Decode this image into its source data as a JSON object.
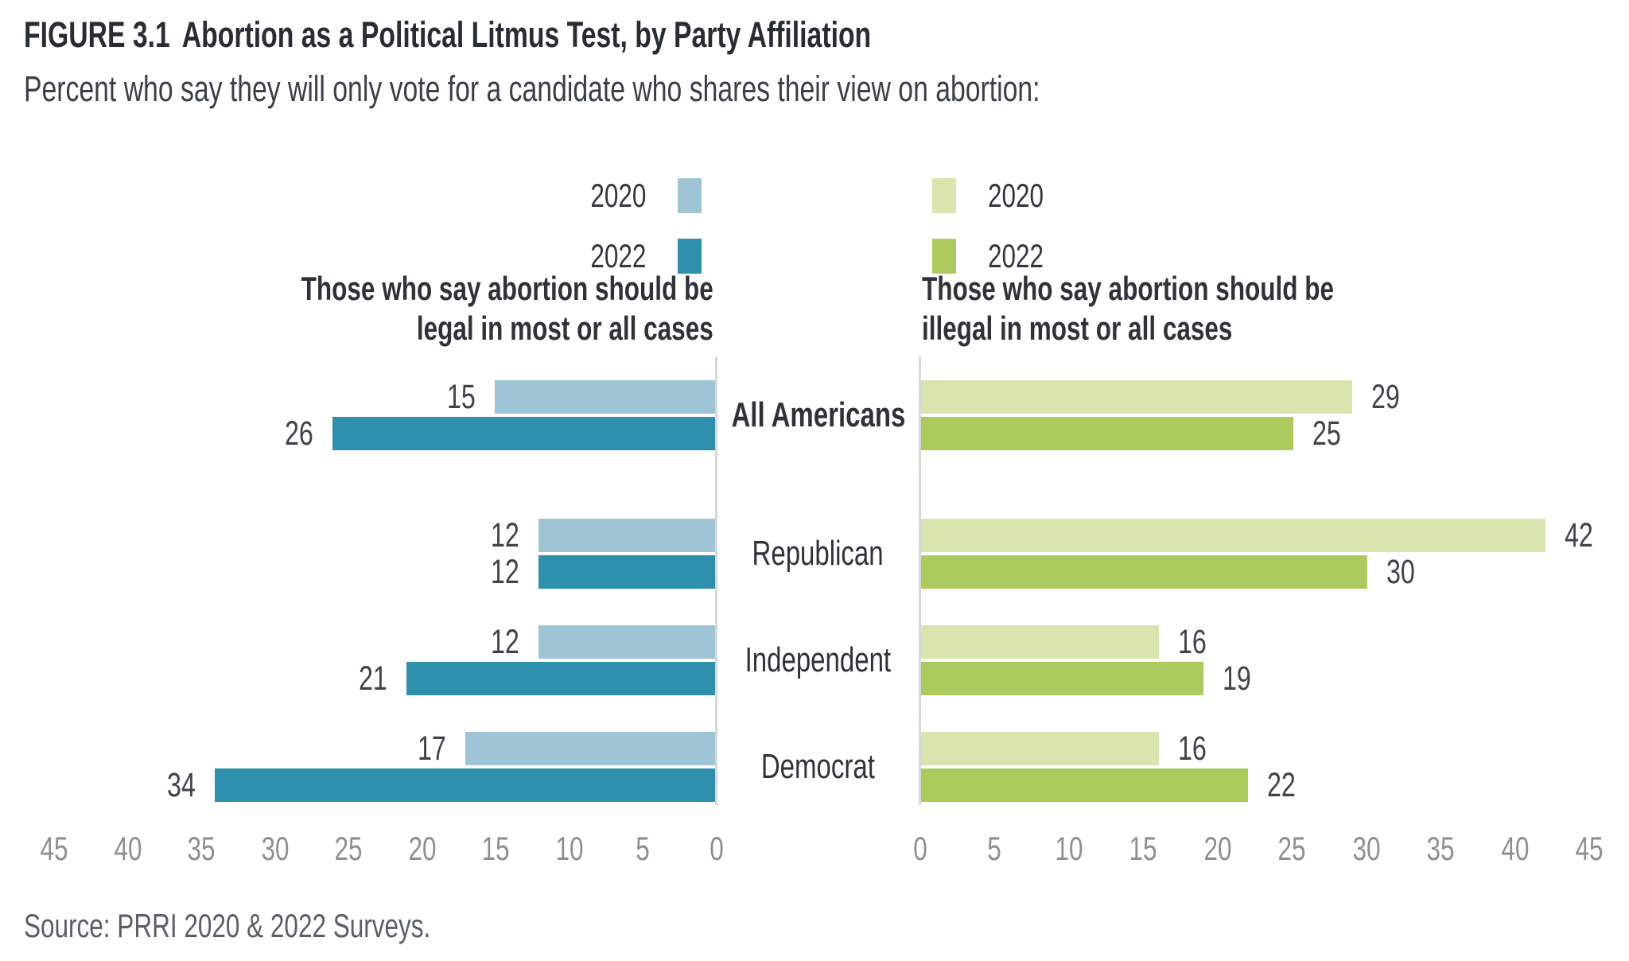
{
  "figure": {
    "label": "FIGURE 3.1",
    "title": "Abortion as a Political Litmus Test, by Party Affiliation",
    "subtitle": "Percent who say they will only vote for a candidate who shares their view on abortion:",
    "source": "Source: PRRI 2020 & 2022 Surveys."
  },
  "chart_data": {
    "type": "bar",
    "orientation": "horizontal",
    "title": "Abortion as a Political Litmus Test, by Party Affiliation",
    "categories": [
      "All Americans",
      "Republican",
      "Independent",
      "Democrat"
    ],
    "emphasized_category": "All Americans",
    "axis": {
      "min": 0,
      "max": 45,
      "step": 5,
      "unit": "percent"
    },
    "grid": false,
    "panels": [
      {
        "id": "legal",
        "header": [
          "Those who say abortion should be",
          "legal in most or all cases"
        ],
        "direction": "right-to-left",
        "legend_position": "above",
        "series": [
          {
            "name": "2020",
            "color": "#9ec4d5",
            "values": [
              15,
              12,
              12,
              17
            ]
          },
          {
            "name": "2022",
            "color": "#2e90ad",
            "values": [
              26,
              12,
              21,
              34
            ]
          }
        ]
      },
      {
        "id": "illegal",
        "header": [
          "Those who say abortion should be",
          "illegal in most or all cases"
        ],
        "direction": "left-to-right",
        "legend_position": "above",
        "series": [
          {
            "name": "2020",
            "color": "#d8e5ae",
            "values": [
              29,
              42,
              16,
              16
            ]
          },
          {
            "name": "2022",
            "color": "#adca5e",
            "values": [
              25,
              30,
              19,
              22
            ]
          }
        ]
      }
    ]
  }
}
